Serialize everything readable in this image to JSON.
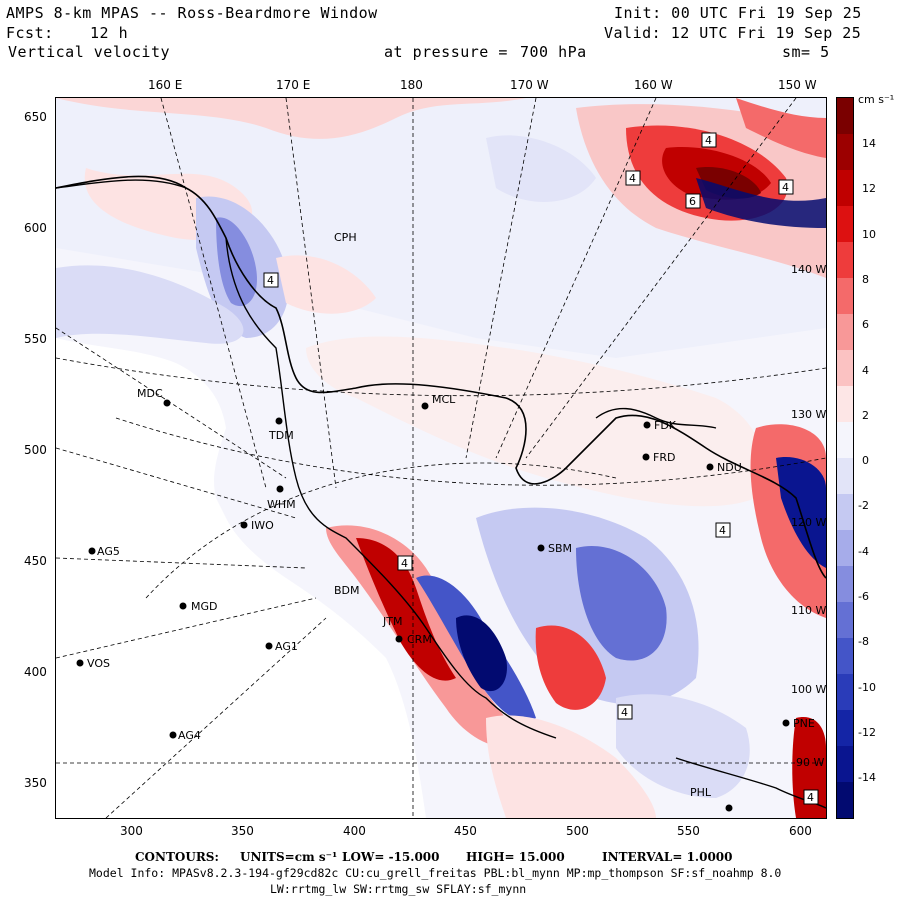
{
  "header": {
    "model_title": "AMPS 8-km MPAS -- Ross-Beardmore Window",
    "forecast_label": "Fcst:",
    "forecast_hours": "12 h",
    "field_name": "Vertical velocity",
    "init_time": "Init: 00 UTC Fri 19 Sep 25",
    "valid_time": "Valid: 12 UTC Fri 19 Sep 25",
    "pressure_label": "at pressure =",
    "pressure_value": "700 hPa",
    "smoothing": "sm= 5"
  },
  "axes": {
    "top_longitudes": [
      "160 E",
      "170 E",
      "180",
      "170 W",
      "160 W",
      "150 W"
    ],
    "left_ticks": [
      "650",
      "600",
      "550",
      "500",
      "450",
      "400",
      "350"
    ],
    "bottom_ticks": [
      "300",
      "350",
      "400",
      "450",
      "500",
      "550",
      "600"
    ],
    "inner_longitudes": [
      "140 W",
      "130 W",
      "120 W",
      "110 W",
      "100 W",
      "90 W"
    ]
  },
  "colorbar": {
    "units": "cm s⁻¹",
    "labels": [
      "14",
      "12",
      "10",
      "8",
      "6",
      "4",
      "2",
      "0",
      "-2",
      "-4",
      "-6",
      "-8",
      "-10",
      "-12",
      "-14"
    ],
    "colors": [
      "#7a0000",
      "#9c0000",
      "#c00000",
      "#dd1111",
      "#ee3c3c",
      "#f46a6a",
      "#f89898",
      "#fbc2c2",
      "#fde6e6",
      "#f5f5fc",
      "#e2e4f8",
      "#c5c9f2",
      "#a6acea",
      "#858ddf",
      "#6470d4",
      "#4455c8",
      "#2a3cb9",
      "#1425a6",
      "#0a1590",
      "#020a70"
    ]
  },
  "stations": [
    {
      "name": "CPH"
    },
    {
      "name": "MDC"
    },
    {
      "name": "TDM"
    },
    {
      "name": "WHM"
    },
    {
      "name": "IWO"
    },
    {
      "name": "AG5"
    },
    {
      "name": "MGD"
    },
    {
      "name": "AG1"
    },
    {
      "name": "VOS"
    },
    {
      "name": "AG4"
    },
    {
      "name": "MCL"
    },
    {
      "name": "FDK"
    },
    {
      "name": "FRD"
    },
    {
      "name": "NDU"
    },
    {
      "name": "SBM"
    },
    {
      "name": "BDM"
    },
    {
      "name": "CRM"
    },
    {
      "name": "JTM"
    },
    {
      "name": "PNE"
    },
    {
      "name": "PHL"
    }
  ],
  "footer": {
    "contours_label": "CONTOURS:",
    "units_text": "UNITS=cm s⁻¹",
    "low": "LOW= -15.000",
    "high": "HIGH= 15.000",
    "interval": "INTERVAL= 1.0000",
    "model_info": "Model Info: MPASv8.2.3-194-gf29cd82c CU:cu_grell_freitas PBL:bl_mynn MP:mp_thompson SF:sf_noahmp 8.0",
    "model_info_2": "LW:rrtmg_lw SW:rrtmg_sw SFLAY:sf_mynn"
  }
}
